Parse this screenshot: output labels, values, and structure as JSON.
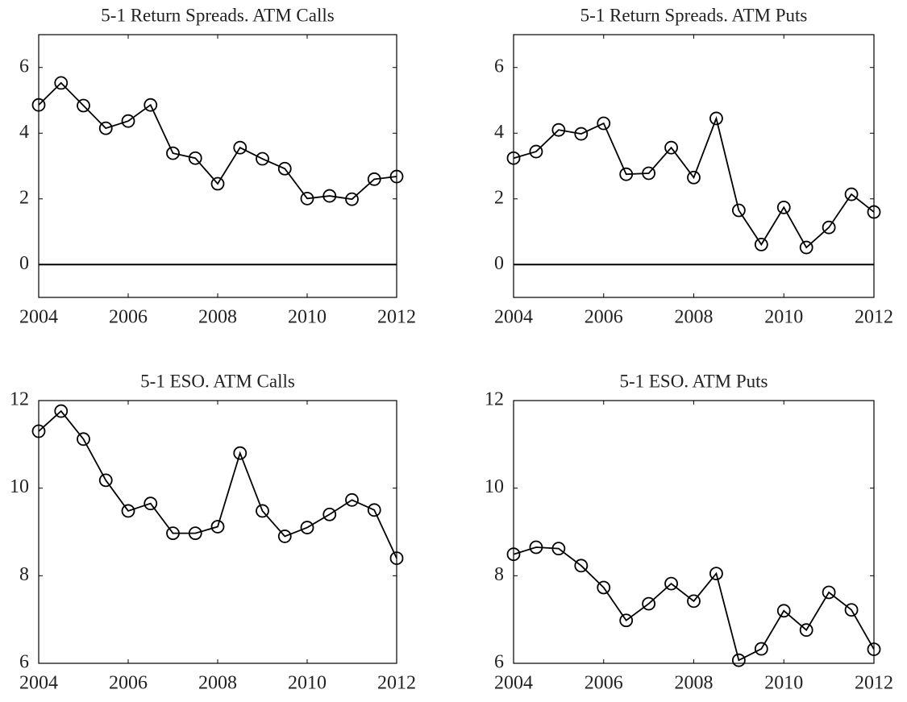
{
  "chart_data": [
    {
      "type": "line",
      "title": "5-1 Return Spreads. ATM Calls",
      "x": [
        2004,
        2004.5,
        2005,
        2005.5,
        2006,
        2006.5,
        2007,
        2007.5,
        2008,
        2008.5,
        2009,
        2009.5,
        2010,
        2010.5,
        2011,
        2011.5,
        2012
      ],
      "values": [
        4.86,
        5.53,
        4.84,
        4.15,
        4.37,
        4.86,
        3.39,
        3.24,
        2.46,
        3.56,
        3.22,
        2.92,
        2.01,
        2.09,
        1.99,
        2.6,
        2.68
      ],
      "color": "#000000",
      "xlim": [
        2004,
        2012
      ],
      "xticks": [
        2004,
        2006,
        2008,
        2010,
        2012
      ],
      "ylim": [
        -1,
        7
      ],
      "yticks": [
        0,
        2,
        4,
        6
      ],
      "reference_line": 0
    },
    {
      "type": "line",
      "title": "5-1 Return Spreads. ATM Puts",
      "x": [
        2004,
        2004.5,
        2005,
        2005.5,
        2006,
        2006.5,
        2007,
        2007.5,
        2008,
        2008.5,
        2009,
        2009.5,
        2010,
        2010.5,
        2011,
        2011.5,
        2012
      ],
      "values": [
        3.24,
        3.44,
        4.1,
        3.98,
        4.3,
        2.75,
        2.78,
        3.56,
        2.65,
        4.45,
        1.65,
        0.61,
        1.74,
        0.52,
        1.13,
        2.14,
        1.6
      ],
      "color": "#000000",
      "xlim": [
        2004,
        2012
      ],
      "xticks": [
        2004,
        2006,
        2008,
        2010,
        2012
      ],
      "ylim": [
        -1,
        7
      ],
      "yticks": [
        0,
        2,
        4,
        6
      ],
      "reference_line": 0
    },
    {
      "type": "line",
      "title": "5-1 ESO. ATM Calls",
      "x": [
        2004,
        2004.5,
        2005,
        2005.5,
        2006,
        2006.5,
        2007,
        2007.5,
        2008,
        2008.5,
        2009,
        2009.5,
        2010,
        2010.5,
        2011,
        2011.5,
        2012
      ],
      "values": [
        11.3,
        11.76,
        11.12,
        10.18,
        9.48,
        9.65,
        8.97,
        8.97,
        9.12,
        10.8,
        9.48,
        8.9,
        9.1,
        9.4,
        9.73,
        9.5,
        8.4
      ],
      "color": "#000000",
      "xlim": [
        2004,
        2012
      ],
      "xticks": [
        2004,
        2006,
        2008,
        2010,
        2012
      ],
      "ylim": [
        6,
        12
      ],
      "yticks": [
        6,
        8,
        10,
        12
      ]
    },
    {
      "type": "line",
      "title": "5-1 ESO. ATM Puts",
      "x": [
        2004,
        2004.5,
        2005,
        2005.5,
        2006,
        2006.5,
        2007,
        2007.5,
        2008,
        2008.5,
        2009,
        2009.5,
        2010,
        2010.5,
        2011,
        2011.5,
        2012
      ],
      "values": [
        8.49,
        8.65,
        8.62,
        8.23,
        7.73,
        6.98,
        7.36,
        7.82,
        7.42,
        8.05,
        6.07,
        6.33,
        7.2,
        6.76,
        7.62,
        7.22,
        6.32
      ],
      "color": "#000000",
      "xlim": [
        2004,
        2012
      ],
      "xticks": [
        2004,
        2006,
        2008,
        2010,
        2012
      ],
      "ylim": [
        6,
        12
      ],
      "yticks": [
        6,
        8,
        10,
        12
      ]
    }
  ]
}
